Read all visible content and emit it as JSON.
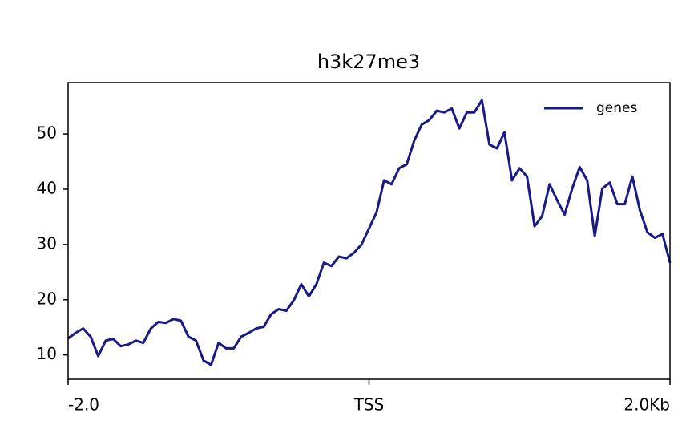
{
  "chart_data": {
    "type": "line",
    "title": "h3k27me3",
    "x": [
      -2.0,
      -1.95,
      -1.9,
      -1.85,
      -1.8,
      -1.75,
      -1.7,
      -1.65,
      -1.6,
      -1.55,
      -1.5,
      -1.45,
      -1.4,
      -1.35,
      -1.3,
      -1.25,
      -1.2,
      -1.15,
      -1.1,
      -1.05,
      -1.0,
      -0.95,
      -0.9,
      -0.85,
      -0.8,
      -0.75,
      -0.7,
      -0.65,
      -0.6,
      -0.55,
      -0.5,
      -0.45,
      -0.4,
      -0.35,
      -0.3,
      -0.25,
      -0.2,
      -0.15,
      -0.1,
      -0.05,
      0,
      0.05,
      0.1,
      0.15,
      0.2,
      0.25,
      0.3,
      0.35,
      0.4,
      0.45,
      0.5,
      0.55,
      0.6,
      0.65,
      0.7,
      0.75,
      0.8,
      0.85,
      0.9,
      0.95,
      1.0,
      1.05,
      1.1,
      1.15,
      1.2,
      1.25,
      1.3,
      1.35,
      1.4,
      1.45,
      1.5,
      1.55,
      1.6,
      1.65,
      1.7,
      1.75,
      1.8,
      1.85,
      1.9,
      1.95,
      2.0
    ],
    "series": [
      {
        "name": "genes",
        "color": "#191a85",
        "values": [
          13.0,
          14.0,
          14.8,
          13.3,
          9.8,
          12.6,
          12.9,
          11.6,
          11.9,
          12.6,
          12.2,
          14.8,
          16.0,
          15.8,
          16.5,
          16.2,
          13.3,
          12.6,
          9.0,
          8.2,
          12.2,
          11.2,
          11.2,
          13.3,
          14.0,
          14.8,
          15.1,
          17.4,
          18.3,
          18.0,
          19.9,
          22.8,
          20.6,
          22.8,
          26.7,
          26.1,
          27.8,
          27.5,
          28.5,
          30.0,
          32.9,
          35.8,
          41.6,
          40.9,
          43.8,
          44.5,
          48.8,
          51.7,
          52.5,
          54.2,
          53.9,
          54.6,
          51.0,
          53.9,
          53.9,
          56.1,
          48.1,
          47.4,
          50.3,
          41.6,
          43.8,
          42.3,
          33.3,
          35.1,
          40.9,
          38.0,
          35.4,
          40.1,
          44.0,
          41.6,
          31.5,
          40.1,
          41.2,
          37.3,
          37.3,
          42.3,
          36.2,
          32.2,
          31.2,
          31.9,
          26.7
        ]
      }
    ],
    "xlim": [
      -2.0,
      2.0
    ],
    "xticks": [
      {
        "value": -2.0,
        "label": "-2.0"
      },
      {
        "value": 0,
        "label": "TSS"
      },
      {
        "value": 2.0,
        "label": "2.0Kb"
      }
    ],
    "ylim": [
      5.6,
      59.3
    ],
    "yticks": [
      10,
      20,
      30,
      40,
      50
    ],
    "grid": false,
    "legend": "upper right"
  }
}
